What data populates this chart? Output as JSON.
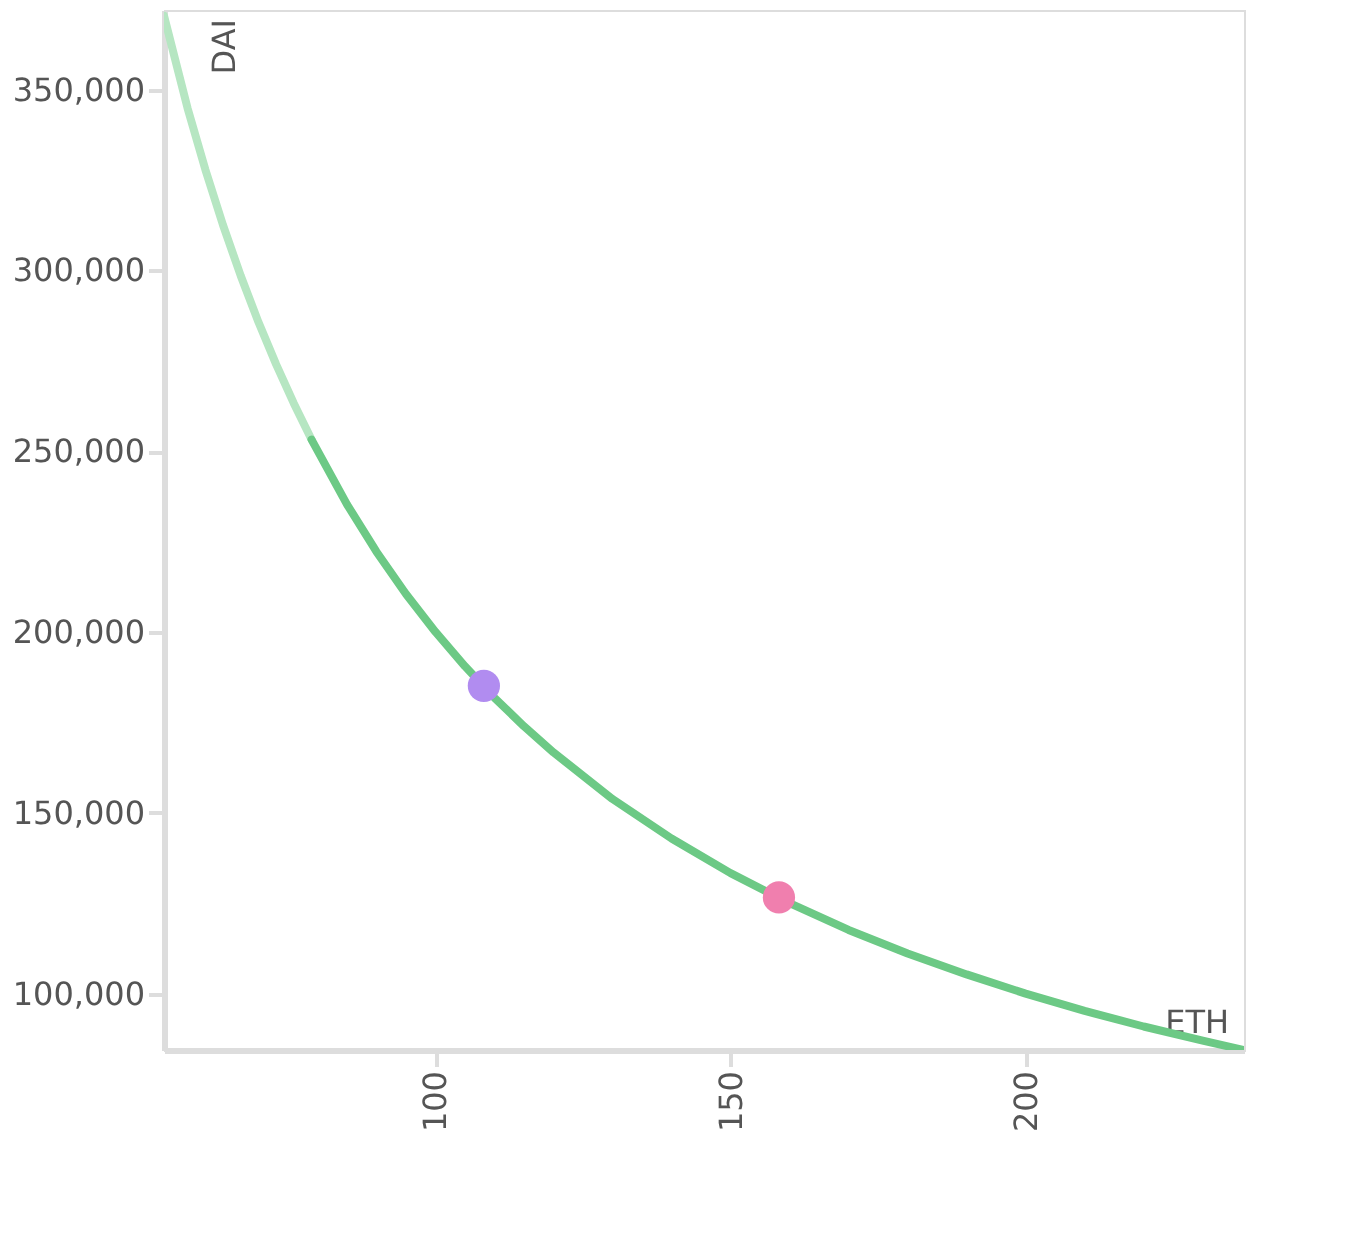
{
  "chart_data": {
    "type": "line",
    "xlabel": "ETH",
    "ylabel": "DAI",
    "xlim": [
      54,
      237
    ],
    "ylim": [
      84400,
      372000
    ],
    "xticks": [
      100,
      150,
      200
    ],
    "yticks": [
      {
        "value": 100000,
        "label": "100,000"
      },
      {
        "value": 150000,
        "label": "150,000"
      },
      {
        "value": 200000,
        "label": "200,000"
      },
      {
        "value": 250000,
        "label": "250,000"
      },
      {
        "value": 300000,
        "label": "300,000"
      },
      {
        "value": 350000,
        "label": "350,000"
      }
    ],
    "grid": false,
    "series": [
      {
        "color": "#b6e6c2",
        "x": [
          54,
          58,
          61,
          64,
          67,
          70,
          73,
          76,
          79
        ],
        "values": [
          370400,
          344800,
          327900,
          312500,
          298500,
          285700,
          274000,
          263200,
          253200
        ]
      },
      {
        "color": "#6cc985",
        "x": [
          79,
          85,
          90,
          95,
          100,
          105,
          110,
          115,
          120,
          130,
          140,
          150,
          160,
          170,
          180,
          190,
          200,
          210,
          220,
          230,
          237
        ],
        "values": [
          253200,
          235300,
          222200,
          210500,
          200000,
          190500,
          181800,
          173900,
          166700,
          153800,
          142900,
          133300,
          125000,
          117600,
          111100,
          105300,
          100000,
          95200,
          90900,
          87000,
          84400
        ]
      },
      {
        "type": "scatter",
        "color": "#b18cf0",
        "x": [
          108.2
        ],
        "values": [
          185100
        ]
      },
      {
        "type": "scatter",
        "color": "#f07fae",
        "x": [
          158.2
        ],
        "values": [
          126600
        ]
      }
    ]
  }
}
